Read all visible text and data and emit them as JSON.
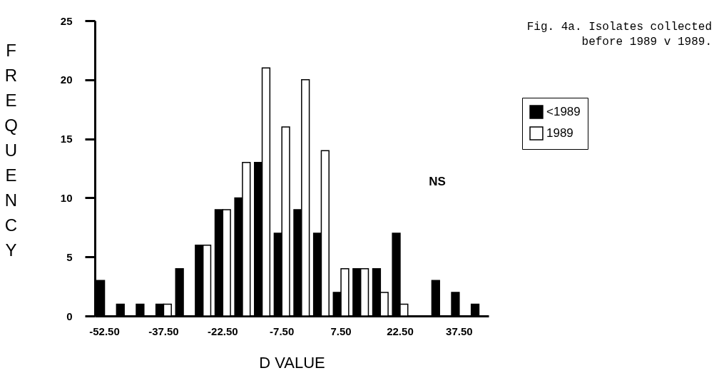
{
  "chart_data": {
    "type": "bar",
    "title": "Fig. 4a. Isolates collected before 1989 v 1989.",
    "xlabel": "D VALUE",
    "ylabel": "FREQUENCY",
    "categories": [
      "-52.50",
      null,
      null,
      "-37.50",
      null,
      null,
      "-22.50",
      null,
      null,
      "-7.50",
      null,
      null,
      "7.50",
      null,
      null,
      "22.50",
      null,
      null,
      "37.50",
      null
    ],
    "series": [
      {
        "name": "<1989",
        "color": "#000000",
        "values": [
          3,
          1,
          1,
          1,
          4,
          6,
          9,
          10,
          13,
          7,
          9,
          7,
          2,
          4,
          4,
          7,
          null,
          3,
          2,
          1
        ]
      },
      {
        "name": "1989",
        "color": "#ffffff",
        "values": [
          null,
          null,
          null,
          1,
          null,
          6,
          9,
          13,
          21,
          16,
          20,
          14,
          4,
          4,
          2,
          1,
          null,
          null,
          null,
          null
        ]
      }
    ],
    "ylim": [
      0,
      25
    ],
    "yticks": [
      0,
      5,
      10,
      15,
      20,
      25
    ],
    "grid": false,
    "legend": "right",
    "annotations": [
      "NS"
    ]
  }
}
